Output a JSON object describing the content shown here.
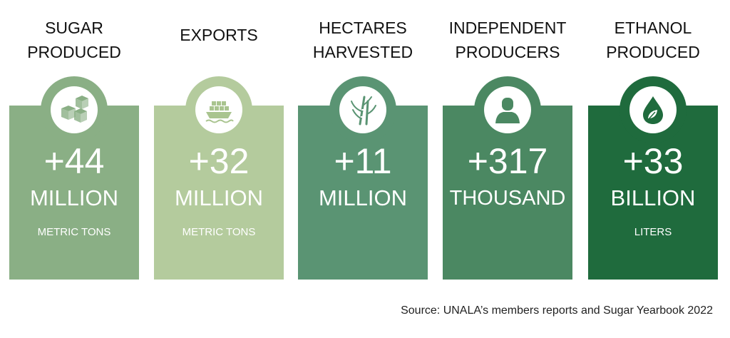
{
  "cards": [
    {
      "heading_line1": "SUGAR",
      "heading_line2": "PRODUCED",
      "icon": "sugar-cubes-icon",
      "value": "+44",
      "unit": "MILLION",
      "sub": "METRIC TONS",
      "color": "#8aaf85"
    },
    {
      "heading_line1": "EXPORTS",
      "heading_line2": "",
      "icon": "cargo-ship-icon",
      "value": "+32",
      "unit": "MILLION",
      "sub": "METRIC TONS",
      "color": "#b4cb9d"
    },
    {
      "heading_line1": "HECTARES",
      "heading_line2": "HARVESTED",
      "icon": "sugarcane-icon",
      "value": "+11",
      "unit": "MILLION",
      "sub": "",
      "color": "#5a9473"
    },
    {
      "heading_line1": "INDEPENDENT",
      "heading_line2": "PRODUCERS",
      "icon": "person-icon",
      "value": "+317",
      "unit": "THOUSAND",
      "sub": "",
      "color": "#4b8862"
    },
    {
      "heading_line1": "ETHANOL",
      "heading_line2": "PRODUCED",
      "icon": "ethanol-drop-icon",
      "value": "+33",
      "unit": "BILLION",
      "sub": "LITERS",
      "color": "#1f6b3d"
    }
  ],
  "source": "Source: UNALA’s members reports and Sugar Yearbook 2022"
}
